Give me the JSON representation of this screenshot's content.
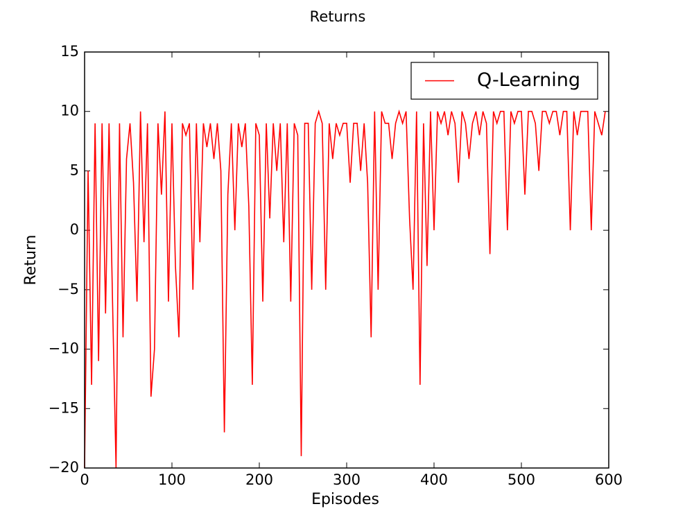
{
  "chart_data": {
    "type": "line",
    "title": "Returns",
    "xlabel": "Episodes",
    "ylabel": "Return",
    "x": [
      0,
      4,
      8,
      12,
      16,
      20,
      24,
      28,
      32,
      36,
      40,
      44,
      48,
      52,
      56,
      60,
      64,
      68,
      72,
      76,
      80,
      84,
      88,
      92,
      96,
      100,
      104,
      108,
      112,
      116,
      120,
      124,
      128,
      132,
      136,
      140,
      144,
      148,
      152,
      156,
      160,
      164,
      168,
      172,
      176,
      180,
      184,
      188,
      192,
      196,
      200,
      204,
      208,
      212,
      216,
      220,
      224,
      228,
      232,
      236,
      240,
      244,
      248,
      252,
      256,
      260,
      264,
      268,
      272,
      276,
      280,
      284,
      288,
      292,
      296,
      300,
      304,
      308,
      312,
      316,
      320,
      324,
      328,
      332,
      336,
      340,
      344,
      348,
      352,
      356,
      360,
      364,
      368,
      372,
      376,
      380,
      384,
      388,
      392,
      396,
      400,
      404,
      408,
      412,
      416,
      420,
      424,
      428,
      432,
      436,
      440,
      444,
      448,
      452,
      456,
      460,
      464,
      468,
      472,
      476,
      480,
      484,
      488,
      492,
      496,
      500,
      504,
      508,
      512,
      516,
      520,
      524,
      528,
      532,
      536,
      540,
      544,
      548,
      552,
      556,
      560,
      564,
      568,
      572,
      576,
      580,
      584,
      588,
      592,
      596
    ],
    "series": [
      {
        "name": "Q-Learning",
        "color": "#ff0000",
        "values": [
          -20,
          5,
          -13,
          9,
          -11,
          9,
          -7,
          9,
          -6,
          -20,
          9,
          -9,
          6,
          9,
          4,
          -6,
          10,
          -1,
          9,
          -14,
          -10,
          9,
          3,
          10,
          -6,
          9,
          -3,
          -9,
          9,
          8,
          9,
          -5,
          9,
          -1,
          9,
          7,
          9,
          6,
          9,
          5,
          -17,
          3,
          9,
          0,
          9,
          7,
          9,
          2,
          -13,
          9,
          8,
          -6,
          9,
          1,
          9,
          5,
          9,
          -1,
          9,
          -6,
          9,
          8,
          -19,
          9,
          9,
          -5,
          9,
          10,
          9,
          -5,
          9,
          6,
          9,
          8,
          9,
          9,
          4,
          9,
          9,
          5,
          9,
          4,
          -9,
          10,
          -5,
          10,
          9,
          9,
          6,
          9,
          10,
          9,
          10,
          1,
          -5,
          10,
          -13,
          9,
          -3,
          10,
          0,
          10,
          9,
          10,
          8,
          10,
          9,
          4,
          10,
          9,
          6,
          9,
          10,
          8,
          10,
          9,
          -2,
          10,
          9,
          10,
          10,
          0,
          10,
          9,
          10,
          10,
          3,
          10,
          10,
          9,
          5,
          10,
          10,
          9,
          10,
          10,
          8,
          10,
          10,
          0,
          10,
          8,
          10,
          10,
          10,
          0,
          10,
          9,
          8,
          10
        ]
      }
    ],
    "xlim": [
      0,
      600
    ],
    "xticks": [
      0,
      100,
      200,
      300,
      400,
      500,
      600
    ],
    "ylim": [
      -20,
      15
    ],
    "yticks": [
      {
        "value": -20,
        "label": "−20"
      },
      {
        "value": -15,
        "label": "−15"
      },
      {
        "value": -10,
        "label": "−10"
      },
      {
        "value": -5,
        "label": "−5"
      },
      0,
      5,
      10,
      15
    ],
    "legend": "upper right"
  }
}
